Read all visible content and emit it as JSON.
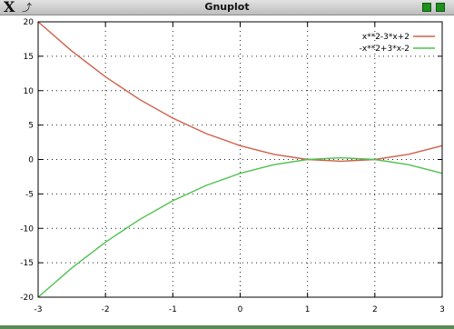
{
  "window": {
    "title": "Gnuplot"
  },
  "colors": {
    "series1": "#d0604c",
    "series2": "#4fc24f",
    "grid": "#222222",
    "axis": "#000000"
  },
  "chart_data": {
    "type": "line",
    "title": "",
    "xlabel": "",
    "ylabel": "",
    "xlim": [
      -3,
      3
    ],
    "ylim": [
      -20,
      20
    ],
    "xticks": [
      -3,
      -2,
      -1,
      0,
      1,
      2,
      3
    ],
    "yticks": [
      -20,
      -15,
      -10,
      -5,
      0,
      5,
      10,
      15,
      20
    ],
    "grid": true,
    "legend_position": "top-right",
    "series": [
      {
        "name": "x**2-3*x+2",
        "color": "#d0604c",
        "x": [
          -3,
          -2.5,
          -2,
          -1.5,
          -1,
          -0.5,
          0,
          0.5,
          1,
          1.5,
          2,
          2.5,
          3
        ],
        "y": [
          20,
          15.75,
          12,
          8.75,
          6,
          3.75,
          2,
          0.75,
          0,
          -0.25,
          0,
          0.75,
          2
        ]
      },
      {
        "name": "-x**2+3*x-2",
        "color": "#4fc24f",
        "x": [
          -3,
          -2.5,
          -2,
          -1.5,
          -1,
          -0.5,
          0,
          0.5,
          1,
          1.5,
          2,
          2.5,
          3
        ],
        "y": [
          -20,
          -15.75,
          -12,
          -8.75,
          -6,
          -3.75,
          -2,
          -0.75,
          0,
          0.25,
          0,
          -0.75,
          -2
        ]
      }
    ]
  }
}
